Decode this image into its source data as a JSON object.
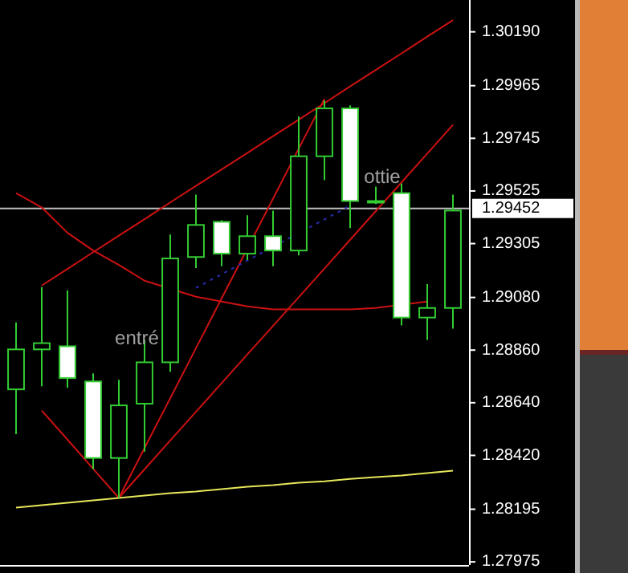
{
  "chart_data": {
    "type": "candlestick",
    "tick_labels": "y",
    "ylim": [
      1.27962,
      1.30323
    ],
    "color": "#33cc33",
    "yticks": [
      {
        "value": 1.3019,
        "label": "1.30190"
      },
      {
        "value": 1.29965,
        "label": "1.29965"
      },
      {
        "value": 1.29745,
        "label": "1.29745"
      },
      {
        "value": 1.29525,
        "label": "1.29525"
      },
      {
        "value": 1.29305,
        "label": "1.29305"
      },
      {
        "value": 1.2908,
        "label": "1.29080"
      },
      {
        "value": 1.2886,
        "label": "1.28860"
      },
      {
        "value": 1.2864,
        "label": "1.28640"
      },
      {
        "value": 1.2842,
        "label": "1.28420"
      },
      {
        "value": 1.28195,
        "label": "1.28195"
      },
      {
        "value": 1.27975,
        "label": "1.27975"
      }
    ],
    "categories": [
      null,
      null,
      null,
      null,
      null,
      null,
      null,
      null,
      null,
      null,
      null,
      null,
      null,
      null,
      null,
      null,
      null,
      null
    ],
    "ohlc": [
      [
        1.28696,
        1.28976,
        1.28509,
        1.28863
      ],
      [
        1.28863,
        1.29123,
        1.28709,
        1.28889
      ],
      [
        1.28876,
        1.2911,
        1.28702,
        1.28743
      ],
      [
        1.28729,
        1.28763,
        1.28362,
        1.28409
      ],
      [
        1.28409,
        1.28736,
        1.28242,
        1.28629
      ],
      [
        1.28636,
        1.28903,
        1.28436,
        1.28809
      ],
      [
        1.28809,
        1.29343,
        1.28769,
        1.29243
      ],
      [
        1.29249,
        1.2951,
        1.29203,
        1.29383
      ],
      [
        1.29396,
        1.29403,
        1.2921,
        1.29263
      ],
      [
        1.29263,
        1.29423,
        1.29236,
        1.29336
      ],
      [
        1.29336,
        1.29443,
        1.2921,
        1.29276
      ],
      [
        1.29276,
        1.29837,
        1.29256,
        1.2967
      ],
      [
        1.2967,
        1.29903,
        1.2957,
        1.2987
      ],
      [
        1.2987,
        1.29883,
        1.2937,
        1.29483
      ],
      [
        1.29483,
        1.29543,
        1.2947,
        1.29483
      ],
      [
        1.29516,
        1.29556,
        1.28963,
        1.28996
      ],
      [
        1.28996,
        1.29136,
        1.28903,
        1.29036
      ],
      [
        1.29036,
        1.2951,
        1.2895,
        1.29443
      ]
    ],
    "series": [
      {
        "type": "line",
        "color": "#cc1111",
        "values": [
          null,
          1.2913,
          1.29199,
          1.29269,
          1.29338,
          1.29407,
          1.29477,
          1.29546,
          1.29615,
          1.29684,
          1.29754,
          1.29823,
          1.29892,
          1.29962,
          1.30031,
          1.301,
          1.3017,
          1.30239
        ]
      },
      {
        "type": "line",
        "color": "#cc1111",
        "values": [
          null,
          null,
          null,
          null,
          1.28242,
          1.28451,
          1.28659,
          1.28868,
          1.29076,
          null,
          1.29493,
          1.29702,
          1.2991,
          null,
          null,
          null,
          null,
          null
        ]
      },
      {
        "type": "line",
        "color": "#cc1111",
        "values": [
          null,
          null,
          null,
          null,
          1.28242,
          1.28362,
          1.28482,
          1.28602,
          1.28722,
          1.28842,
          1.28961,
          1.29081,
          1.29201,
          1.29321,
          1.29441,
          1.29561,
          1.29681,
          1.29801
        ]
      },
      {
        "type": "line",
        "color": "#cc1111",
        "values": [
          null,
          1.28607,
          1.28486,
          1.28364,
          1.28242,
          null,
          null,
          null,
          null,
          null,
          null,
          null,
          null,
          null,
          null,
          null,
          null,
          null
        ]
      },
      {
        "type": "line",
        "color": "#cc1111",
        "values": [
          1.29516,
          1.29456,
          1.2935,
          1.29276,
          1.29216,
          1.2915,
          null,
          1.29083,
          1.29063,
          1.29043,
          1.2903,
          1.2903,
          1.2903,
          1.2903,
          1.29036,
          null,
          1.29063,
          null
        ]
      },
      {
        "type": "line",
        "color": "#2a2ab0",
        "line_style": "dotted",
        "values": [
          null,
          null,
          null,
          null,
          null,
          null,
          null,
          1.2912,
          1.29177,
          1.29234,
          1.29292,
          null,
          1.29406,
          1.29463,
          null,
          null,
          null,
          null
        ]
      },
      {
        "type": "line",
        "color": "#e6e65a",
        "values": [
          1.28202,
          1.28212,
          1.28222,
          1.28232,
          1.28242,
          1.28252,
          1.28262,
          1.28269,
          1.28279,
          1.28289,
          1.28296,
          1.28306,
          1.28312,
          1.28322,
          1.28329,
          1.28336,
          1.28346,
          1.28356
        ]
      }
    ],
    "ref_lines": [
      {
        "axis": "y",
        "value": 1.29452,
        "label": "1.29452",
        "color": "#c0c0c0"
      }
    ],
    "annotations": [
      "entré",
      "ottie"
    ]
  }
}
